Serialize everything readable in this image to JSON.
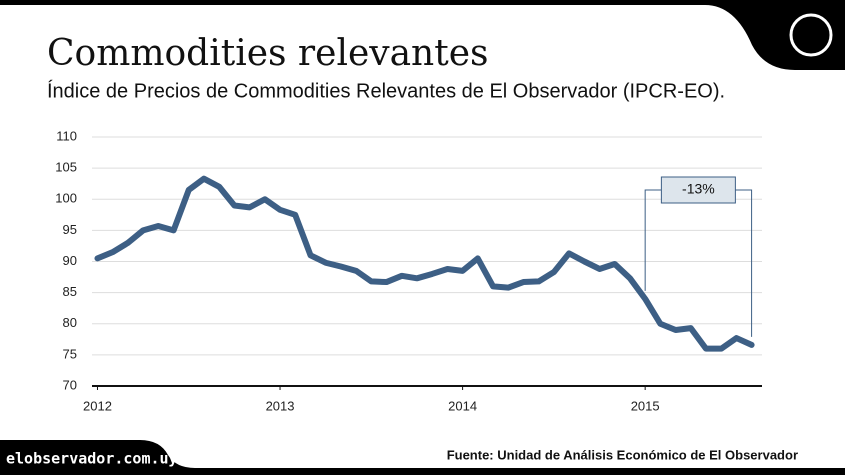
{
  "chart_data": {
    "type": "line",
    "title": "Commodities relevantes",
    "subtitle": "Índice de Precios de Commodities Relevantes de El Observador (IPCR-EO).",
    "annotation": "-13%",
    "source": "Fuente: Unidad de Análisis Económico de El Observador",
    "site": "elobservador.com.uy",
    "x": [
      2012,
      2012.083,
      2012.167,
      2012.25,
      2012.333,
      2012.417,
      2012.5,
      2012.583,
      2012.667,
      2012.75,
      2012.833,
      2012.917,
      2013,
      2013.083,
      2013.167,
      2013.25,
      2013.333,
      2013.417,
      2013.5,
      2013.583,
      2013.667,
      2013.75,
      2013.833,
      2013.917,
      2014,
      2014.083,
      2014.167,
      2014.25,
      2014.333,
      2014.417,
      2014.5,
      2014.583,
      2014.667,
      2014.75,
      2014.833,
      2014.917,
      2015,
      2015.083,
      2015.167,
      2015.25,
      2015.333,
      2015.417,
      2015.5,
      2015.583
    ],
    "series": [
      {
        "name": "IPCR-EO",
        "color": "#3d5f85",
        "values": [
          90.5,
          91.5,
          93,
          95,
          95.7,
          95,
          101.5,
          103.3,
          102,
          99,
          98.7,
          100,
          98.3,
          97.5,
          91,
          89.8,
          89.2,
          88.5,
          86.8,
          86.7,
          87.7,
          87.3,
          88,
          88.8,
          88.5,
          90.5,
          86,
          85.8,
          86.7,
          86.8,
          88.3,
          91.3,
          90,
          88.8,
          89.6,
          87.3,
          84,
          80,
          79,
          79.3,
          76,
          76,
          77.7,
          76.6
        ]
      }
    ],
    "xlim": [
      2011.97,
      2015.64
    ],
    "xticks": [
      2012,
      2013,
      2014,
      2015
    ],
    "ylim": [
      70,
      110
    ],
    "yticks": [
      70,
      75,
      80,
      85,
      90,
      95,
      100,
      105,
      110
    ],
    "grid": true
  }
}
